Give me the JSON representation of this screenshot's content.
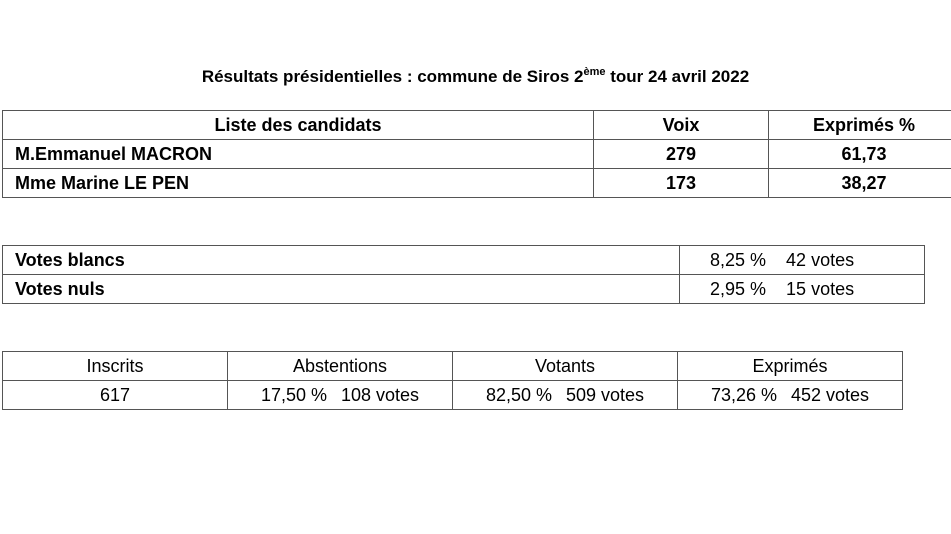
{
  "title": {
    "main": "Résultats présidentielles : commune de Siros 2",
    "superscript": "ème",
    "suffix": " tour 24 avril 2022"
  },
  "candidates_table": {
    "headers": {
      "name": "Liste des candidats",
      "votes": "Voix",
      "percent": "Exprimés %"
    },
    "rows": [
      {
        "name": "M.Emmanuel MACRON",
        "votes": "279",
        "percent": "61,73"
      },
      {
        "name": "Mme Marine LE PEN",
        "votes": "173",
        "percent": "38,27"
      }
    ]
  },
  "blank_null_table": {
    "rows": [
      {
        "label": "Votes blancs",
        "percent": "8,25 %",
        "votes": "42 votes"
      },
      {
        "label": "Votes nuls",
        "percent": "2,95 %",
        "votes": "15 votes"
      }
    ]
  },
  "participation_table": {
    "headers": [
      "Inscrits",
      "Abstentions",
      "Votants",
      "Exprimés"
    ],
    "registered": "617",
    "abstentions": {
      "percent": "17,50 %",
      "votes": "108 votes"
    },
    "voters": {
      "percent": "82,50 %",
      "votes": "509 votes"
    },
    "expressed": {
      "percent": "73,26 %",
      "votes": "452 votes"
    }
  }
}
